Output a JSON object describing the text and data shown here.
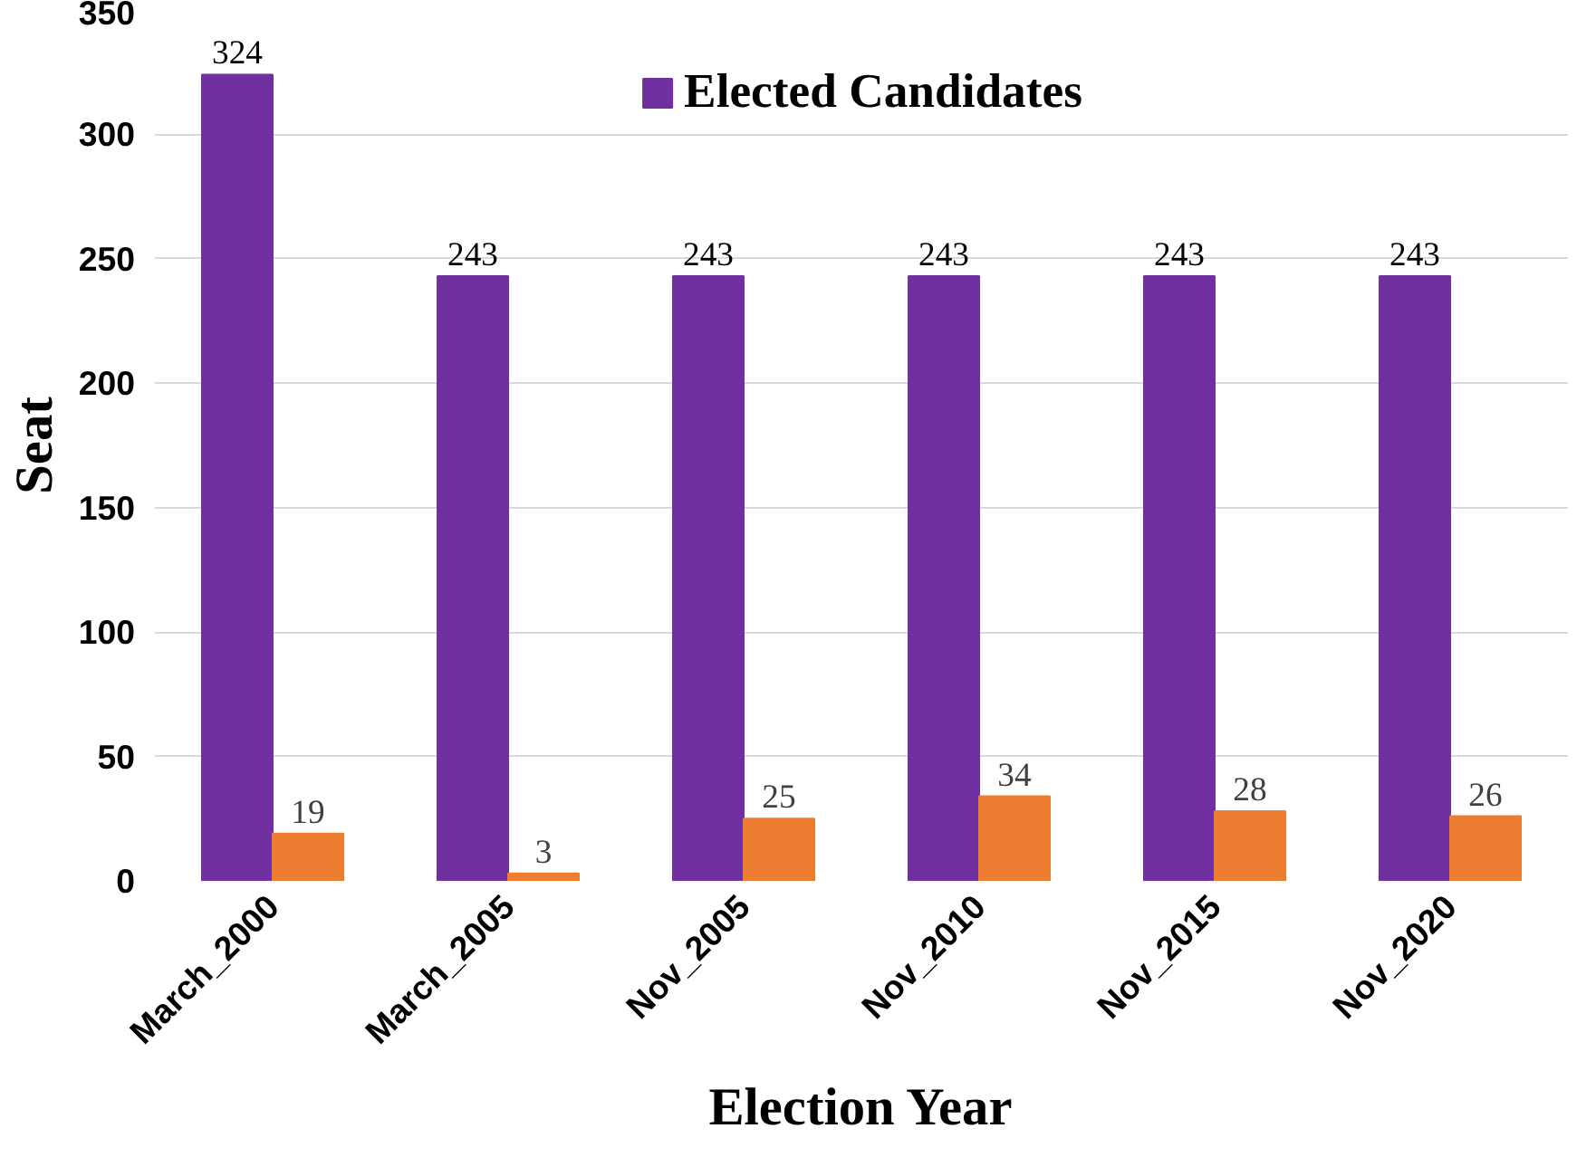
{
  "chart_data": {
    "type": "bar",
    "xlabel": "Election Year",
    "ylabel": "Seat",
    "categories": [
      "March_2000",
      "March_2005",
      "Nov_2005",
      "Nov_2010",
      "Nov_2015",
      "Nov_2020"
    ],
    "series": [
      {
        "name": "Elected Candidates",
        "color": "#7030a0",
        "values": [
          324,
          243,
          243,
          243,
          243,
          243
        ]
      },
      {
        "color": "#ed7d31",
        "values": [
          19,
          3,
          25,
          34,
          28,
          26
        ]
      }
    ],
    "ylim": [
      0,
      350
    ],
    "yticks": [
      0,
      50,
      100,
      150,
      200,
      250,
      300,
      350
    ],
    "grid": "y",
    "legend": "top",
    "data_labels": true
  }
}
